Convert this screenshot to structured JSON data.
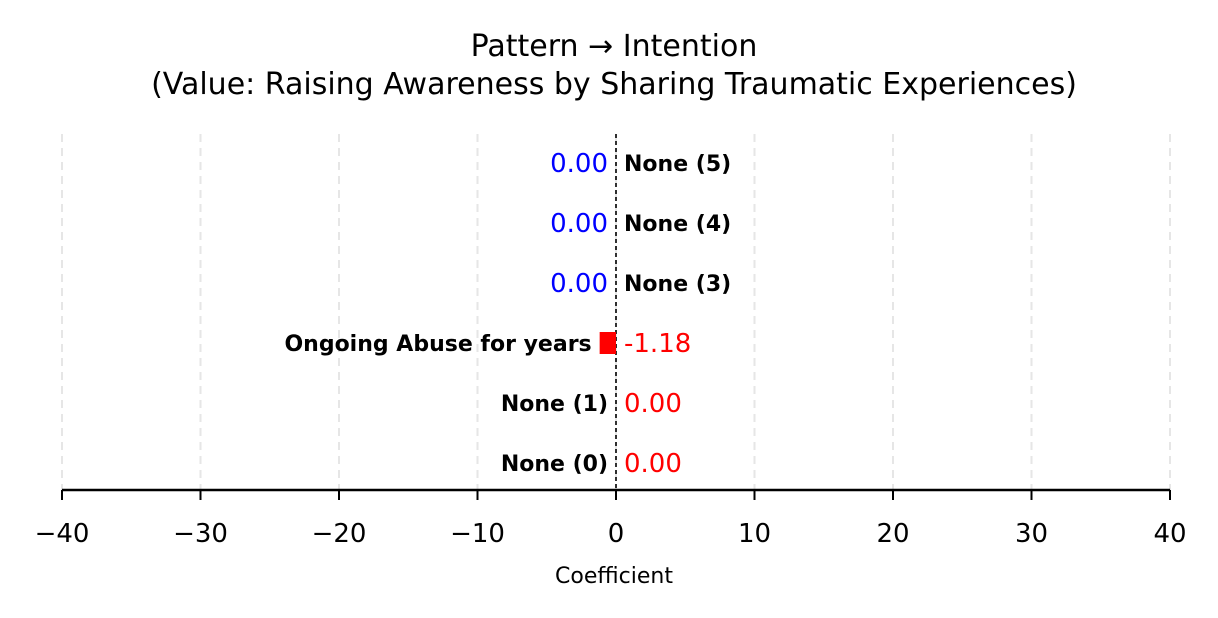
{
  "chart_data": {
    "type": "bar",
    "orientation": "horizontal",
    "title": "Pattern → Intention\n(Value: Raising Awareness by Sharing Traumatic Experiences)",
    "xlabel": "Coefficient",
    "ylabel": "",
    "xlim": [
      -40,
      40
    ],
    "xticks": [
      -40,
      -30,
      -20,
      -10,
      0,
      10,
      20,
      30,
      40
    ],
    "xtick_labels": [
      "−40",
      "−30",
      "−20",
      "−10",
      "0",
      "10",
      "20",
      "30",
      "40"
    ],
    "grid": "vertical dashed",
    "zero_line": "dashed",
    "categories": [
      "None (0)",
      "None (1)",
      "Ongoing Abuse for years",
      "None (3)",
      "None (4)",
      "None (5)"
    ],
    "values": [
      0.0,
      0.0,
      -1.18,
      0.0,
      0.0,
      0.0
    ],
    "value_labels": [
      "0.00",
      "0.00",
      "-1.18",
      "0.00",
      "0.00",
      "0.00"
    ],
    "label_colors": [
      "#ff0000",
      "#ff0000",
      "#ff0000",
      "#0000ff",
      "#0000ff",
      "#0000ff"
    ],
    "bar_color": "#ff0000"
  }
}
